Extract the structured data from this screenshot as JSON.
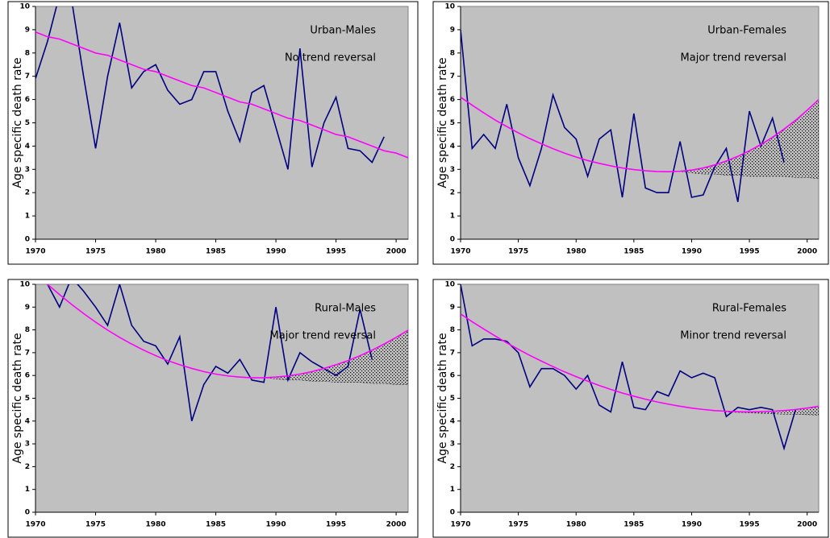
{
  "chart_data": [
    {
      "type": "line",
      "title": "Urban-Males",
      "subtitle": "No trend reversal",
      "ylabel": "Age specific death rate",
      "x": [
        1970,
        1971,
        1972,
        1973,
        1974,
        1975,
        1976,
        1977,
        1978,
        1979,
        1980,
        1981,
        1982,
        1983,
        1984,
        1985,
        1986,
        1987,
        1988,
        1989,
        1990,
        1991,
        1992,
        1993,
        1994,
        1995,
        1996,
        1997,
        1998,
        1999,
        2000,
        2001
      ],
      "xlim": [
        1970,
        2001
      ],
      "ylim": [
        0,
        10
      ],
      "xticks": [
        1970,
        1975,
        1980,
        1985,
        1990,
        1995,
        2000
      ],
      "yticks": [
        0,
        1,
        2,
        3,
        4,
        5,
        6,
        7,
        8,
        9,
        10
      ],
      "series": [
        {
          "color": "#000080",
          "values": [
            6.9,
            8.5,
            10.5,
            10.3,
            7.0,
            3.9,
            7.0,
            9.3,
            6.5,
            7.2,
            7.5,
            6.4,
            5.8,
            6.0,
            7.2,
            7.2,
            5.5,
            4.2,
            6.3,
            6.6,
            4.8,
            3.0,
            8.2,
            3.1,
            5.0,
            6.1,
            3.9,
            3.8,
            3.3,
            4.4,
            null,
            null
          ]
        },
        {
          "color": "#ff00ff",
          "values": [
            8.9,
            8.7,
            8.6,
            8.4,
            8.2,
            8.0,
            7.9,
            7.7,
            7.5,
            7.3,
            7.2,
            7.0,
            6.8,
            6.6,
            6.5,
            6.3,
            6.1,
            5.9,
            5.8,
            5.6,
            5.4,
            5.2,
            5.1,
            4.9,
            4.7,
            4.5,
            4.4,
            4.2,
            4.0,
            3.8,
            3.7,
            3.5
          ]
        }
      ]
    },
    {
      "type": "line",
      "title": "Urban-Females",
      "subtitle": "Major trend reversal",
      "ylabel": "Age specific death rate",
      "x": [
        1970,
        1971,
        1972,
        1973,
        1974,
        1975,
        1976,
        1977,
        1978,
        1979,
        1980,
        1981,
        1982,
        1983,
        1984,
        1985,
        1986,
        1987,
        1988,
        1989,
        1990,
        1991,
        1992,
        1993,
        1994,
        1995,
        1996,
        1997,
        1998,
        1999,
        2000,
        2001
      ],
      "xlim": [
        1970,
        2001
      ],
      "ylim": [
        0,
        10
      ],
      "xticks": [
        1970,
        1975,
        1980,
        1985,
        1990,
        1995,
        2000
      ],
      "yticks": [
        0,
        1,
        2,
        3,
        4,
        5,
        6,
        7,
        8,
        9,
        10
      ],
      "series": [
        {
          "color": "#000080",
          "values": [
            9.0,
            3.9,
            4.5,
            3.9,
            5.8,
            3.5,
            2.3,
            3.9,
            6.2,
            4.8,
            4.3,
            2.7,
            4.3,
            4.7,
            1.8,
            5.4,
            2.2,
            2.0,
            2.0,
            4.2,
            1.8,
            1.9,
            3.1,
            3.9,
            1.6,
            5.5,
            4.0,
            5.2,
            3.3,
            null,
            null,
            null
          ]
        },
        {
          "color": "#ff00ff",
          "values": [
            6.1,
            5.76,
            5.43,
            5.12,
            4.84,
            4.57,
            4.32,
            4.1,
            3.89,
            3.7,
            3.53,
            3.38,
            3.26,
            3.15,
            3.06,
            2.99,
            2.94,
            2.91,
            2.9,
            2.92,
            2.97,
            3.06,
            3.19,
            3.36,
            3.56,
            3.8,
            4.07,
            4.38,
            4.73,
            5.11,
            5.54,
            6.0
          ]
        }
      ],
      "band": {
        "color": "#000000",
        "values": [
          null,
          null,
          null,
          null,
          null,
          null,
          null,
          null,
          null,
          null,
          null,
          null,
          null,
          null,
          null,
          null,
          null,
          null,
          null,
          2.91,
          2.85,
          2.8,
          2.8,
          2.75,
          2.75,
          2.7,
          2.7,
          2.7,
          2.7,
          2.65,
          2.65,
          2.6
        ]
      }
    },
    {
      "type": "line",
      "title": "Rural-Males",
      "subtitle": "Major trend reversal",
      "ylabel": "Age specific death rate",
      "x": [
        1970,
        1971,
        1972,
        1973,
        1974,
        1975,
        1976,
        1977,
        1978,
        1979,
        1980,
        1981,
        1982,
        1983,
        1984,
        1985,
        1986,
        1987,
        1988,
        1989,
        1990,
        1991,
        1992,
        1993,
        1994,
        1995,
        1996,
        1997,
        1998,
        1999,
        2000,
        2001
      ],
      "xlim": [
        1970,
        2001
      ],
      "ylim": [
        0,
        10
      ],
      "xticks": [
        1970,
        1975,
        1980,
        1985,
        1990,
        1995,
        2000
      ],
      "yticks": [
        0,
        1,
        2,
        3,
        4,
        5,
        6,
        7,
        8,
        9,
        10
      ],
      "series": [
        {
          "color": "#000080",
          "values": [
            10.5,
            10.0,
            9.0,
            10.3,
            9.7,
            9.0,
            8.2,
            10.0,
            8.2,
            7.5,
            7.3,
            6.5,
            7.7,
            4.0,
            5.6,
            6.4,
            6.1,
            6.7,
            5.8,
            5.7,
            9.0,
            5.8,
            7.0,
            6.6,
            6.3,
            6.0,
            6.4,
            8.9,
            6.7,
            null,
            null,
            null
          ]
        },
        {
          "color": "#ff00ff",
          "values": [
            10.49,
            10.0,
            9.55,
            9.12,
            8.72,
            8.34,
            7.99,
            7.67,
            7.38,
            7.11,
            6.87,
            6.65,
            6.47,
            6.31,
            6.17,
            6.06,
            5.98,
            5.93,
            5.9,
            5.9,
            5.93,
            5.98,
            6.06,
            6.17,
            6.31,
            6.47,
            6.65,
            6.87,
            7.11,
            7.38,
            7.67,
            7.99
          ]
        }
      ],
      "band": {
        "color": "#000000",
        "values": [
          null,
          null,
          null,
          null,
          null,
          null,
          null,
          null,
          null,
          null,
          null,
          null,
          null,
          null,
          null,
          null,
          null,
          null,
          null,
          5.9,
          5.85,
          5.8,
          5.8,
          5.75,
          5.75,
          5.7,
          5.7,
          5.7,
          5.65,
          5.65,
          5.6,
          5.6
        ]
      }
    },
    {
      "type": "line",
      "title": "Rural-Females",
      "subtitle": "Minor trend reversal",
      "ylabel": "Age specific death rate",
      "x": [
        1970,
        1971,
        1972,
        1973,
        1974,
        1975,
        1976,
        1977,
        1978,
        1979,
        1980,
        1981,
        1982,
        1983,
        1984,
        1985,
        1986,
        1987,
        1988,
        1989,
        1990,
        1991,
        1992,
        1993,
        1994,
        1995,
        1996,
        1997,
        1998,
        1999,
        2000,
        2001
      ],
      "xlim": [
        1970,
        2001
      ],
      "ylim": [
        0,
        10
      ],
      "xticks": [
        1970,
        1975,
        1980,
        1985,
        1990,
        1995,
        2000
      ],
      "yticks": [
        0,
        1,
        2,
        3,
        4,
        5,
        6,
        7,
        8,
        9,
        10
      ],
      "series": [
        {
          "color": "#000080",
          "values": [
            10.0,
            7.3,
            7.6,
            7.6,
            7.5,
            7.0,
            5.5,
            6.3,
            6.3,
            6.0,
            5.4,
            6.0,
            4.7,
            4.4,
            6.6,
            4.6,
            4.5,
            5.3,
            5.1,
            6.2,
            5.9,
            6.1,
            5.9,
            4.2,
            4.6,
            4.5,
            4.6,
            4.5,
            2.8,
            4.5,
            null,
            null
          ]
        },
        {
          "color": "#ff00ff",
          "values": [
            8.7,
            8.36,
            8.04,
            7.73,
            7.43,
            7.15,
            6.88,
            6.63,
            6.39,
            6.16,
            5.95,
            5.75,
            5.56,
            5.39,
            5.23,
            5.09,
            4.96,
            4.84,
            4.74,
            4.65,
            4.57,
            4.51,
            4.46,
            4.43,
            4.41,
            4.4,
            4.41,
            4.43,
            4.46,
            4.51,
            4.57,
            4.65
          ]
        }
      ],
      "band": {
        "color": "#000000",
        "values": [
          null,
          null,
          null,
          null,
          null,
          null,
          null,
          null,
          null,
          null,
          null,
          null,
          null,
          null,
          null,
          null,
          null,
          null,
          null,
          null,
          null,
          null,
          null,
          4.4,
          4.38,
          4.36,
          4.34,
          4.32,
          4.3,
          4.3,
          4.28,
          4.26
        ]
      }
    }
  ]
}
